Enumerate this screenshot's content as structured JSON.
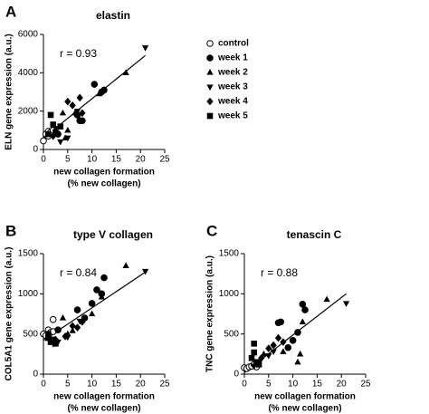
{
  "chart_data": [
    {
      "type": "scatter",
      "panel": "A",
      "title": "elastin",
      "ylabel": "ELN gene expression  (a.u.)",
      "xlabel": [
        "new collagen formation",
        "(% new collagen)"
      ],
      "annotation": "r = 0.93",
      "xlim": [
        0,
        25
      ],
      "xticks": [
        0,
        5,
        10,
        15,
        20,
        25
      ],
      "ylim": [
        0,
        6000
      ],
      "yticks": [
        0,
        2000,
        4000,
        6000
      ],
      "legend": true,
      "color": "#000000",
      "trendline": {
        "x": [
          0,
          21
        ],
        "y": [
          600,
          4900
        ]
      },
      "series": [
        {
          "name": "control",
          "marker": "circle-open",
          "x": [
            0,
            0.5,
            1,
            1.5,
            2,
            1
          ],
          "values": [
            450,
            800,
            950,
            900,
            1000,
            700
          ]
        },
        {
          "name": "week 1",
          "marker": "circle",
          "x": [
            7,
            7.5,
            8,
            10.5,
            12,
            12.5,
            3
          ],
          "values": [
            1800,
            1500,
            1500,
            3400,
            3000,
            3100,
            800
          ]
        },
        {
          "name": "week 2",
          "marker": "triangle-up",
          "x": [
            4,
            5,
            6.5,
            11.5,
            17,
            4.5
          ],
          "values": [
            1900,
            1000,
            1900,
            2900,
            4000,
            600
          ]
        },
        {
          "name": "week 3",
          "marker": "triangle-down",
          "x": [
            21,
            3.5,
            5,
            7,
            2.5
          ],
          "values": [
            5300,
            400,
            600,
            2000,
            1100
          ]
        },
        {
          "name": "week 4",
          "marker": "diamond",
          "x": [
            5,
            6,
            7.5,
            8,
            2
          ],
          "values": [
            2500,
            2300,
            2700,
            1900,
            700
          ]
        },
        {
          "name": "week 5",
          "marker": "square",
          "x": [
            1.5,
            2,
            2.5,
            1,
            3.5
          ],
          "values": [
            1800,
            1300,
            900,
            800,
            1200
          ]
        }
      ]
    },
    {
      "type": "scatter",
      "panel": "B",
      "title": "type V collagen",
      "ylabel": "COL5A1 gene expression  (a.u.)",
      "xlabel": [
        "new collagen formation",
        "(% new collagen)"
      ],
      "annotation": "r = 0.84",
      "xlim": [
        0,
        25
      ],
      "xticks": [
        0,
        5,
        10,
        15,
        20,
        25
      ],
      "ylim": [
        0,
        1500
      ],
      "yticks": [
        0,
        500,
        1000,
        1500
      ],
      "legend": false,
      "color": "#000000",
      "trendline": {
        "x": [
          0,
          21
        ],
        "y": [
          420,
          1270
        ]
      },
      "series": [
        {
          "marker": "circle-open",
          "x": [
            0,
            1,
            1.5,
            2,
            0.5,
            2
          ],
          "values": [
            500,
            550,
            520,
            680,
            480,
            530
          ]
        },
        {
          "marker": "circle",
          "x": [
            3,
            7,
            10,
            11,
            12,
            12.5,
            8.5
          ],
          "values": [
            550,
            800,
            880,
            1050,
            1000,
            1200,
            700
          ]
        },
        {
          "marker": "triangle-up",
          "x": [
            4,
            6,
            12,
            17,
            5,
            10
          ],
          "values": [
            700,
            540,
            960,
            1350,
            500,
            750
          ]
        },
        {
          "marker": "triangle-down",
          "x": [
            21,
            2,
            5,
            3,
            7.5
          ],
          "values": [
            1280,
            380,
            460,
            400,
            660
          ]
        },
        {
          "marker": "diamond",
          "x": [
            6,
            7,
            8,
            4.5,
            2.5
          ],
          "values": [
            600,
            580,
            650,
            470,
            430
          ]
        },
        {
          "marker": "square",
          "x": [
            1,
            1.5,
            2,
            2.5,
            1
          ],
          "values": [
            450,
            400,
            430,
            380,
            500
          ]
        }
      ]
    },
    {
      "type": "scatter",
      "panel": "C",
      "title": "tenascin C",
      "ylabel": "TNC gene expression  (a.u.)",
      "xlabel": [
        "new collagen formation",
        "(% new collagen)"
      ],
      "annotation": "r = 0.88",
      "xlim": [
        0,
        25
      ],
      "xticks": [
        0,
        5,
        10,
        15,
        20,
        25
      ],
      "ylim": [
        0,
        1500
      ],
      "yticks": [
        0,
        500,
        1000,
        1500
      ],
      "legend": false,
      "color": "#000000",
      "trendline": {
        "x": [
          0,
          21
        ],
        "y": [
          20,
          1000
        ]
      },
      "series": [
        {
          "marker": "circle-open",
          "x": [
            0,
            0.5,
            1,
            1.5,
            2,
            2.5
          ],
          "values": [
            80,
            70,
            90,
            100,
            120,
            90
          ]
        },
        {
          "marker": "circle",
          "x": [
            7,
            7.5,
            10,
            11,
            12,
            12.5,
            9
          ],
          "values": [
            640,
            650,
            420,
            520,
            870,
            800,
            330
          ]
        },
        {
          "marker": "triangle-up",
          "x": [
            4,
            11,
            12,
            17,
            8,
            11.5
          ],
          "values": [
            250,
            150,
            650,
            930,
            280,
            250
          ]
        },
        {
          "marker": "triangle-down",
          "x": [
            21,
            3,
            5,
            6,
            2
          ],
          "values": [
            880,
            150,
            230,
            280,
            100
          ]
        },
        {
          "marker": "diamond",
          "x": [
            5,
            6,
            8,
            3.5,
            7
          ],
          "values": [
            320,
            360,
            400,
            200,
            450
          ]
        },
        {
          "marker": "square",
          "x": [
            2,
            2,
            1.5,
            2.5,
            3
          ],
          "values": [
            380,
            270,
            200,
            150,
            120
          ]
        }
      ]
    }
  ]
}
